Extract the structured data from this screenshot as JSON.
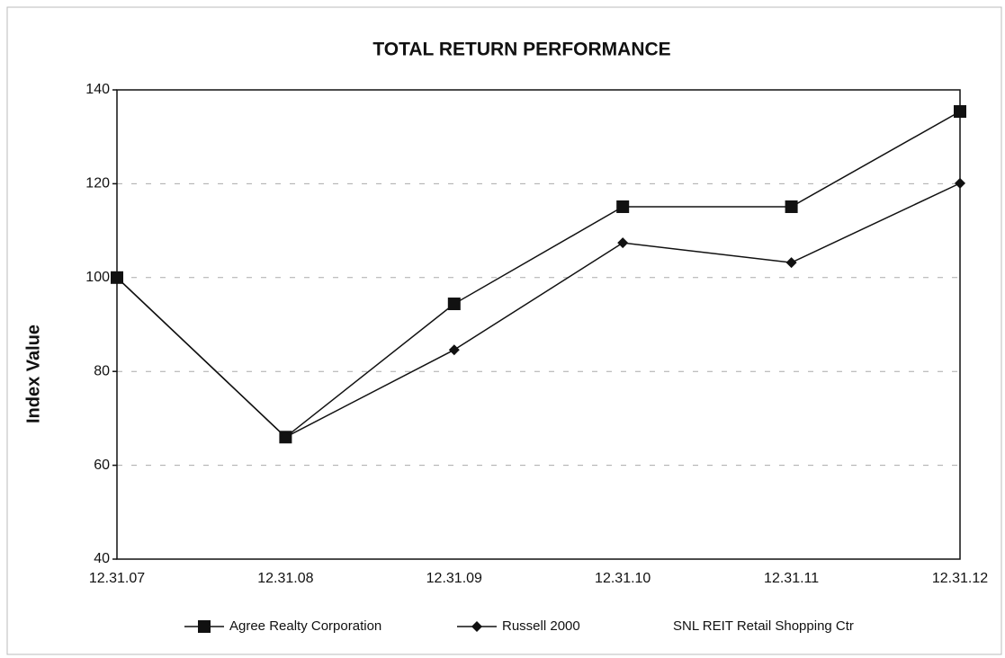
{
  "chart_data": {
    "type": "line",
    "title": "TOTAL RETURN PERFORMANCE",
    "y_label": "Index Value",
    "categories": [
      "12.31.07",
      "12.31.08",
      "12.31.09",
      "12.31.10",
      "12.31.11",
      "12.31.12"
    ],
    "series": [
      {
        "name": "Agree Realty Corporation",
        "color": "#111111",
        "marker": "square",
        "values": [
          100,
          66,
          94.4,
          115.1,
          115.1,
          135.4
        ]
      },
      {
        "name": "Russell 2000",
        "color": "#111111",
        "marker": "diamond",
        "values": [
          100,
          66,
          84.6,
          107.4,
          103.2,
          120.1
        ]
      },
      {
        "name": "SNL REIT Retail Shopping Ctr",
        "color": "#ffffff",
        "marker": "none",
        "values": [
          null,
          null,
          null,
          null,
          null,
          null
        ]
      }
    ],
    "ylim": [
      40,
      140
    ],
    "yticks": [
      40,
      60,
      80,
      100,
      120,
      140
    ],
    "grid": true,
    "legend": "bottom"
  }
}
